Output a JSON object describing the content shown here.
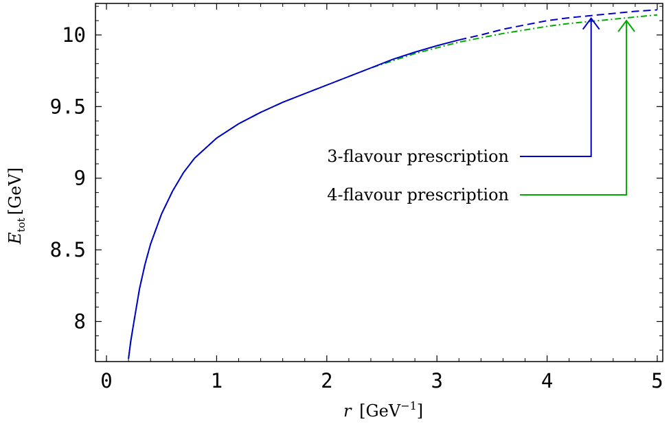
{
  "chart_data": {
    "type": "line",
    "xlabel": {
      "var": "r",
      "unit": "[GeV",
      "exp": "−1",
      "close": "]"
    },
    "ylabel": {
      "var": "E",
      "sub": "tot",
      "unit": "[GeV]"
    },
    "xlim": [
      -0.1,
      5.05
    ],
    "ylim": [
      7.72,
      10.22
    ],
    "x_ticks": [
      0,
      1,
      2,
      3,
      4,
      5
    ],
    "y_ticks": [
      8,
      8.5,
      9,
      9.5,
      10
    ],
    "x_tick_labels": [
      "0",
      "1",
      "2",
      "3",
      "4",
      "5"
    ],
    "y_tick_labels": [
      "8",
      "8.5",
      "9",
      "9.5",
      "10"
    ],
    "grid": false,
    "legend_position": "center-right",
    "series": [
      {
        "name": "3-flavour prescription",
        "color": "#0000cc",
        "solid_until": 3.2,
        "points": [
          [
            0.2,
            7.74
          ],
          [
            0.22,
            7.86
          ],
          [
            0.25,
            8.0
          ],
          [
            0.3,
            8.23
          ],
          [
            0.35,
            8.4
          ],
          [
            0.4,
            8.54
          ],
          [
            0.5,
            8.75
          ],
          [
            0.6,
            8.91
          ],
          [
            0.7,
            9.04
          ],
          [
            0.8,
            9.14
          ],
          [
            0.9,
            9.21
          ],
          [
            1.0,
            9.28
          ],
          [
            1.2,
            9.38
          ],
          [
            1.4,
            9.46
          ],
          [
            1.6,
            9.53
          ],
          [
            1.8,
            9.59
          ],
          [
            2.0,
            9.65
          ],
          [
            2.2,
            9.71
          ],
          [
            2.4,
            9.77
          ],
          [
            2.6,
            9.83
          ],
          [
            2.8,
            9.88
          ],
          [
            3.0,
            9.925
          ],
          [
            3.2,
            9.965
          ],
          [
            3.4,
            10.0
          ],
          [
            3.6,
            10.04
          ],
          [
            3.8,
            10.07
          ],
          [
            4.0,
            10.1
          ],
          [
            4.2,
            10.12
          ],
          [
            4.4,
            10.135
          ],
          [
            4.6,
            10.15
          ],
          [
            4.8,
            10.165
          ],
          [
            5.0,
            10.175
          ]
        ],
        "arrow_x": 4.4
      },
      {
        "name": "4-flavour prescription",
        "color": "#00aa00",
        "solid_until": 0.23,
        "points": [
          [
            0.2,
            7.74
          ],
          [
            0.22,
            7.86
          ],
          [
            0.25,
            8.0
          ],
          [
            0.3,
            8.23
          ],
          [
            0.35,
            8.4
          ],
          [
            0.4,
            8.54
          ],
          [
            0.5,
            8.75
          ],
          [
            0.6,
            8.91
          ],
          [
            0.7,
            9.04
          ],
          [
            0.8,
            9.14
          ],
          [
            0.9,
            9.21
          ],
          [
            1.0,
            9.28
          ],
          [
            1.2,
            9.38
          ],
          [
            1.4,
            9.46
          ],
          [
            1.6,
            9.53
          ],
          [
            1.8,
            9.59
          ],
          [
            2.0,
            9.65
          ],
          [
            2.2,
            9.71
          ],
          [
            2.4,
            9.77
          ],
          [
            2.6,
            9.82
          ],
          [
            2.8,
            9.87
          ],
          [
            3.0,
            9.91
          ],
          [
            3.2,
            9.95
          ],
          [
            3.4,
            9.98
          ],
          [
            3.6,
            10.01
          ],
          [
            3.8,
            10.035
          ],
          [
            4.0,
            10.06
          ],
          [
            4.2,
            10.08
          ],
          [
            4.4,
            10.095
          ],
          [
            4.6,
            10.11
          ],
          [
            4.8,
            10.125
          ],
          [
            5.0,
            10.14
          ]
        ],
        "arrow_x": 4.72
      }
    ]
  }
}
